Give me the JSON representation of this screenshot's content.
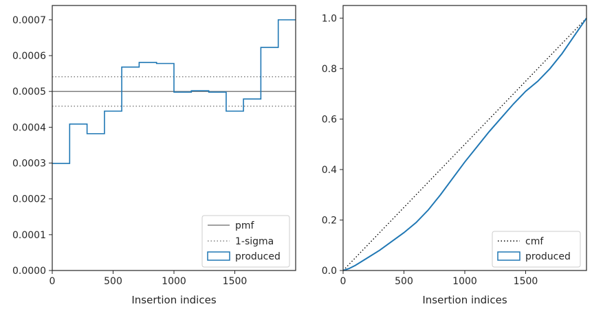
{
  "chart_data": [
    {
      "type": "line",
      "xlabel": "Insertion indices",
      "ylabel": "",
      "xlim": [
        0,
        2000
      ],
      "ylim": [
        0,
        0.00074
      ],
      "xticks": [
        0,
        500,
        1000,
        1500
      ],
      "xtick_labels": [
        "0",
        "500",
        "1000",
        "1500"
      ],
      "yticks": [
        0,
        0.0001,
        0.0002,
        0.0003,
        0.0004,
        0.0005,
        0.0006,
        0.0007
      ],
      "ytick_labels": [
        "0.0000",
        "0.0001",
        "0.0002",
        "0.0003",
        "0.0004",
        "0.0005",
        "0.0006",
        "0.0007"
      ],
      "grid": false,
      "legend_position": "lower-right",
      "series": [
        {
          "name": "pmf",
          "kind": "hline",
          "style": "solid",
          "color": "#808080",
          "y": 0.0005
        },
        {
          "name": "1-sigma",
          "kind": "hlines",
          "style": "dotted",
          "color": "#808080",
          "y": [
            0.000459,
            0.000541
          ]
        },
        {
          "name": "produced",
          "kind": "step-histogram",
          "style": "solid",
          "color": "#1f77b4",
          "bin_edges": [
            0,
            143,
            286,
            429,
            571,
            714,
            857,
            1000,
            1143,
            1286,
            1429,
            1571,
            1714,
            1857,
            2000
          ],
          "values": [
            0.000299,
            0.000409,
            0.000382,
            0.000445,
            0.000568,
            0.000581,
            0.000578,
            0.000498,
            0.000502,
            0.000498,
            0.000445,
            0.000479,
            0.000623,
            0.0007
          ]
        }
      ],
      "legend": [
        "pmf",
        "1-sigma",
        "produced"
      ]
    },
    {
      "type": "line",
      "xlabel": "Insertion indices",
      "ylabel": "",
      "xlim": [
        0,
        2000
      ],
      "ylim": [
        0,
        1.05
      ],
      "xticks": [
        0,
        500,
        1000,
        1500
      ],
      "xtick_labels": [
        "0",
        "500",
        "1000",
        "1500"
      ],
      "yticks": [
        0,
        0.2,
        0.4,
        0.6,
        0.8,
        1.0
      ],
      "ytick_labels": [
        "0.0",
        "0.2",
        "0.4",
        "0.6",
        "0.8",
        "1.0"
      ],
      "grid": false,
      "legend_position": "lower-right",
      "series": [
        {
          "name": "cmf",
          "style": "dotted",
          "color": "#000000",
          "x": [
            0,
            2000
          ],
          "y": [
            0,
            1.0
          ]
        },
        {
          "name": "produced",
          "style": "solid",
          "color": "#1f77b4",
          "x": [
            0,
            50,
            100,
            150,
            200,
            300,
            400,
            500,
            600,
            700,
            800,
            900,
            1000,
            1100,
            1200,
            1300,
            1400,
            1500,
            1600,
            1700,
            1800,
            1900,
            2000
          ],
          "y": [
            0,
            0.008,
            0.02,
            0.035,
            0.05,
            0.08,
            0.115,
            0.15,
            0.19,
            0.24,
            0.3,
            0.365,
            0.43,
            0.49,
            0.55,
            0.605,
            0.66,
            0.71,
            0.75,
            0.8,
            0.86,
            0.93,
            1.0
          ]
        }
      ],
      "legend": [
        "cmf",
        "produced"
      ]
    }
  ]
}
